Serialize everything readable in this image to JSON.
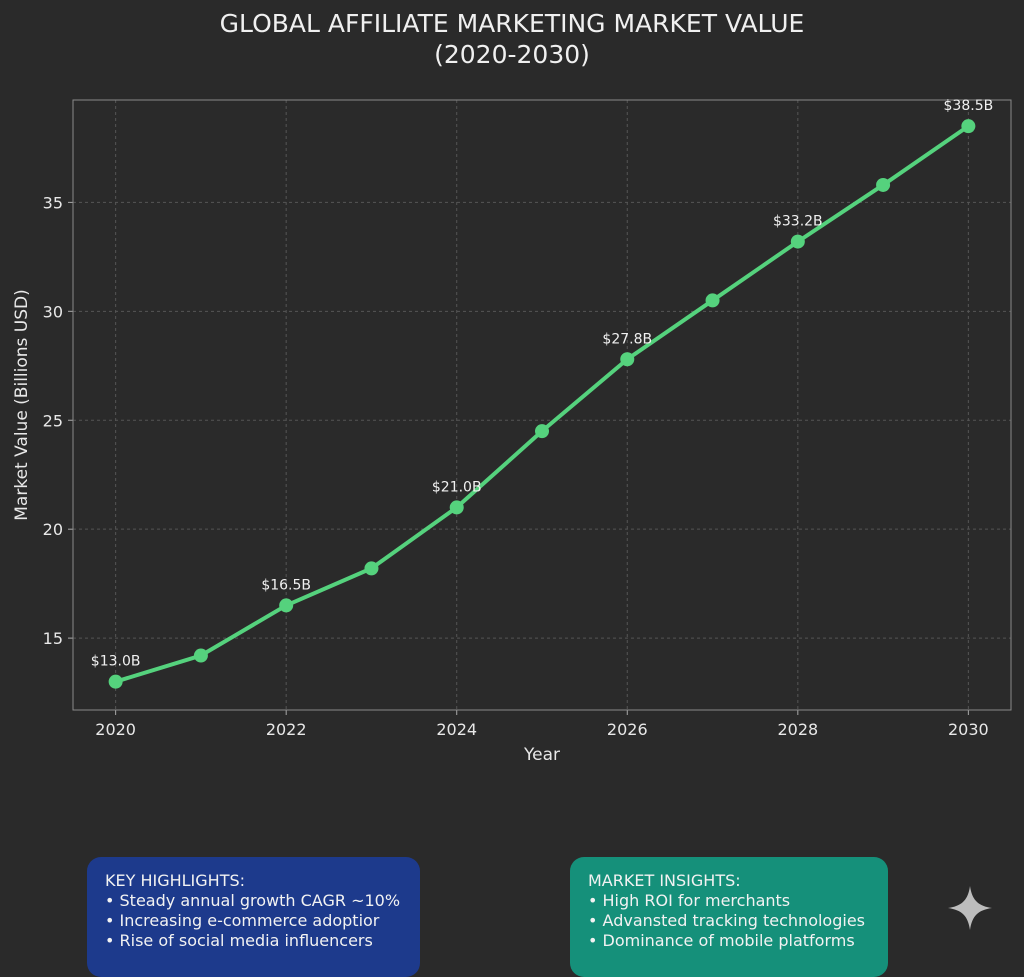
{
  "chart_data": {
    "type": "line",
    "title": "GLOBAL AFFILIATE MARKETING MARKET VALUE\n(2020-2030)",
    "title_lines": [
      "GLOBAL AFFILIATE MARKETING MARKET VALUE",
      "(2020-2030)"
    ],
    "xlabel": "Year",
    "ylabel": "Market Value (Billions USD)",
    "x": [
      2020,
      2021,
      2022,
      2023,
      2024,
      2025,
      2026,
      2027,
      2028,
      2029,
      2030
    ],
    "values": [
      13.0,
      14.2,
      16.5,
      18.2,
      21.0,
      24.5,
      27.8,
      30.5,
      33.2,
      35.8,
      38.5
    ],
    "data_labels": [
      {
        "x": 2020,
        "text": "$13.0B"
      },
      {
        "x": 2022,
        "text": "$16.5B"
      },
      {
        "x": 2024,
        "text": "$21.0B"
      },
      {
        "x": 2026,
        "text": "$27.8B"
      },
      {
        "x": 2028,
        "text": "$33.2B"
      },
      {
        "x": 2030,
        "text": "$38.5B"
      }
    ],
    "xticks": [
      2020,
      2022,
      2024,
      2026,
      2028,
      2030
    ],
    "yticks": [
      15,
      20,
      25,
      30,
      35
    ],
    "xlim": [
      2019.5,
      2030.5
    ],
    "ylim": [
      11.7,
      39.7
    ],
    "grid": true,
    "line_color": "#55d27d",
    "background": "#2a2a2a"
  },
  "highlights": {
    "title": "KEY HIGHLIGHTS:",
    "items": [
      "• Steady annual growth CAGR ~10%",
      "• Increasing e-commerce adoptior",
      "• Rise of social media influencers"
    ],
    "color": "#1d3a8c"
  },
  "insights": {
    "title": "MARKET INSIGHTS:",
    "items": [
      "• High ROI for merchants",
      "• Advansted tracking technologies",
      "• Dominance of mobile platforms"
    ],
    "color": "#15907a"
  },
  "watermark_icon": "sparkle-icon"
}
